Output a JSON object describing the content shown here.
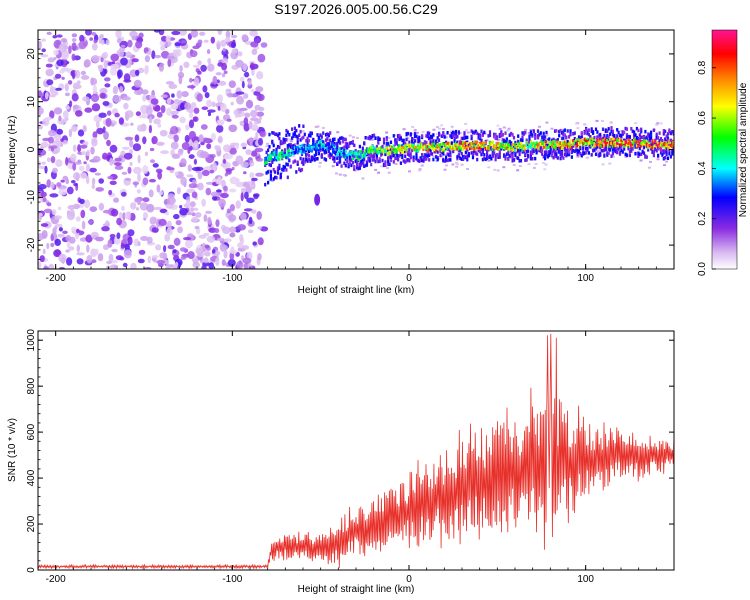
{
  "title": "S197.2026.005.00.56.C29",
  "chart_data": [
    {
      "type": "heatmap",
      "xlabel": "Height of straight line (km)",
      "ylabel": "Frequency (Hz)",
      "xlim": [
        -210,
        150
      ],
      "ylim": [
        -25,
        25
      ],
      "xticks": [
        -200,
        -100,
        0,
        100
      ],
      "yticks": [
        -20,
        -10,
        0,
        10,
        20
      ],
      "colorbar": {
        "label": "Normalized spectral amplitude",
        "range": [
          0,
          0.95
        ],
        "ticks": [
          "0.0",
          "0.2",
          "0.4",
          "0.6",
          "0.8"
        ],
        "colormap": [
          "#ffffff",
          "#d8b8f0",
          "#8a2be2",
          "#0000ff",
          "#00ffff",
          "#00ff00",
          "#ffff00",
          "#ff8000",
          "#ff0000",
          "#ff1493"
        ]
      },
      "noise_region_x": [
        -210,
        -82
      ],
      "signal_track": {
        "x": [
          -82,
          -78,
          -70,
          -62,
          -55,
          -50,
          -45,
          -40,
          -35,
          -30,
          -25,
          -20,
          -15,
          -10,
          -5,
          0,
          10,
          20,
          30,
          40,
          50,
          60,
          70,
          80,
          90,
          100,
          110,
          120,
          130,
          140,
          150
        ],
        "freq": [
          -2.5,
          -1.5,
          -1.0,
          0.0,
          0.5,
          1.0,
          0.5,
          -0.5,
          -1.0,
          -1.5,
          -0.5,
          0.0,
          -0.5,
          0.0,
          0.0,
          0.5,
          0.5,
          0.5,
          0.8,
          0.8,
          0.7,
          0.5,
          0.8,
          1.0,
          1.0,
          1.5,
          1.5,
          1.5,
          1.3,
          1.0,
          1.0
        ],
        "amp": [
          0.55,
          0.5,
          0.5,
          0.4,
          0.45,
          0.45,
          0.4,
          0.45,
          0.5,
          0.5,
          0.55,
          0.6,
          0.65,
          0.7,
          0.72,
          0.75,
          0.8,
          0.82,
          0.85,
          0.85,
          0.8,
          0.7,
          0.75,
          0.8,
          0.85,
          0.88,
          0.9,
          0.9,
          0.92,
          0.92,
          0.93
        ]
      },
      "isolated_blob": {
        "x": -52,
        "freq": -10.5
      }
    },
    {
      "type": "line",
      "xlabel": "Height of straight line (km)",
      "ylabel": "SNR (10 * v/v)",
      "xlim": [
        -210,
        150
      ],
      "ylim": [
        0,
        1040
      ],
      "xticks": [
        -200,
        -100,
        0,
        100
      ],
      "yticks": [
        0,
        200,
        400,
        600,
        800,
        1000
      ],
      "color": "#e8302a",
      "envelope": {
        "x": [
          -210,
          -80,
          -78,
          -70,
          -60,
          -50,
          -40,
          -30,
          -20,
          -10,
          0,
          10,
          20,
          30,
          40,
          50,
          60,
          70,
          80,
          90,
          100,
          110,
          120,
          130,
          140,
          150
        ],
        "mid": [
          15,
          15,
          80,
          110,
          100,
          90,
          110,
          170,
          200,
          230,
          260,
          290,
          320,
          360,
          390,
          420,
          430,
          450,
          460,
          470,
          480,
          490,
          500,
          490,
          500,
          510
        ],
        "amp": [
          8,
          8,
          50,
          80,
          70,
          80,
          120,
          140,
          160,
          180,
          200,
          220,
          250,
          280,
          300,
          330,
          350,
          380,
          400,
          320,
          220,
          180,
          140,
          120,
          100,
          80
        ]
      }
    }
  ]
}
